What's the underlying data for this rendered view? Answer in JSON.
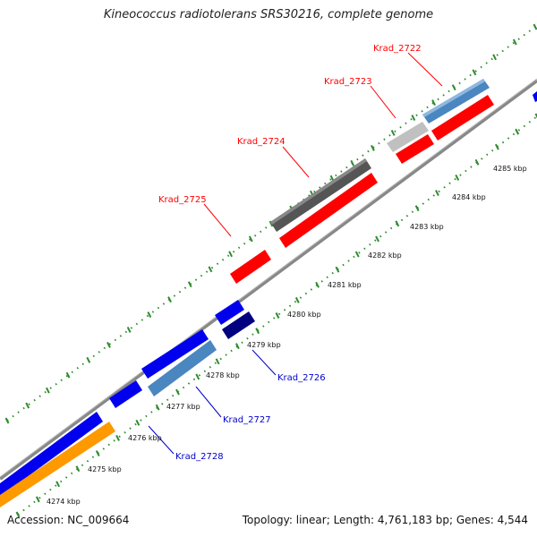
{
  "title": "Kineococcus radiotolerans SRS30216, complete genome",
  "footer": {
    "accession_label": "Accession:",
    "accession": "NC_009664",
    "topology_label": "Topology:",
    "topology": "linear",
    "length_label": "Length:",
    "length": "4,761,183 bp",
    "genes_label": "Genes:",
    "genes": "4,544"
  },
  "colors": {
    "backbone": "#888888",
    "tick_dots": "#2e8b2e",
    "label_top": "#ff0000",
    "label_bottom": "#0000cc"
  },
  "axis": {
    "ticks": [
      "4274 kbp",
      "4275 kbp",
      "4276 kbp",
      "4277 kbp",
      "4278 kbp",
      "4279 kbp",
      "4280 kbp",
      "4281 kbp",
      "4282 kbp",
      "4283 kbp",
      "4284 kbp",
      "4285 kbp"
    ]
  },
  "gene_labels": [
    {
      "name": "Krad_2722",
      "color": "#ff0000"
    },
    {
      "name": "Krad_2723",
      "color": "#ff0000"
    },
    {
      "name": "Krad_2724",
      "color": "#ff0000"
    },
    {
      "name": "Krad_2725",
      "color": "#ff0000"
    },
    {
      "name": "Krad_2726",
      "color": "#0000cc"
    },
    {
      "name": "Krad_2727",
      "color": "#0000cc"
    },
    {
      "name": "Krad_2728",
      "color": "#0000cc"
    }
  ]
}
